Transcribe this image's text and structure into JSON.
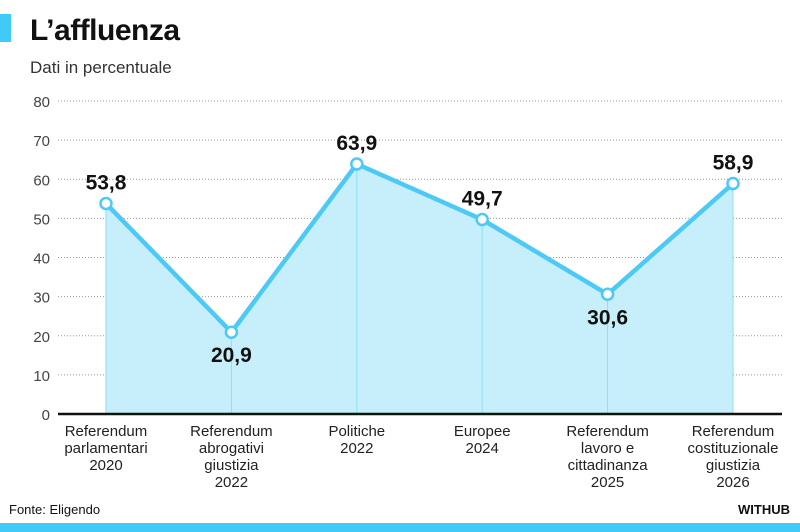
{
  "title": "L’affluenza",
  "subtitle": "Dati in percentuale",
  "source": "Fonte: Eligendo",
  "brand": "WITHUB",
  "colors": {
    "accent": "#3fcaf8",
    "line": "#4dc9f5",
    "fill": "#c7effb"
  },
  "chart_data": {
    "type": "area",
    "title": "L’affluenza",
    "subtitle": "Dati in percentuale",
    "ylabel": "",
    "xlabel": "",
    "ylim": [
      0,
      80
    ],
    "yticks": [
      0,
      10,
      20,
      30,
      40,
      50,
      60,
      70,
      80
    ],
    "grid": true,
    "categories": [
      [
        "Referendum",
        "parlamentari",
        "2020"
      ],
      [
        "Referendum",
        "abrogativi",
        "giustizia",
        "2022"
      ],
      [
        "Politiche",
        "2022"
      ],
      [
        "Europee",
        "2024"
      ],
      [
        "Referendum",
        "lavoro e",
        "cittadinanza",
        "2025"
      ],
      [
        "Referendum",
        "costituzionale",
        "giustizia",
        "2026"
      ]
    ],
    "values": [
      53.8,
      20.9,
      63.9,
      49.7,
      30.6,
      58.9
    ],
    "value_labels": [
      "53,8",
      "20,9",
      "63,9",
      "49,7",
      "30,6",
      "58,9"
    ],
    "label_position": [
      "above",
      "below",
      "above",
      "above",
      "below",
      "above"
    ]
  }
}
